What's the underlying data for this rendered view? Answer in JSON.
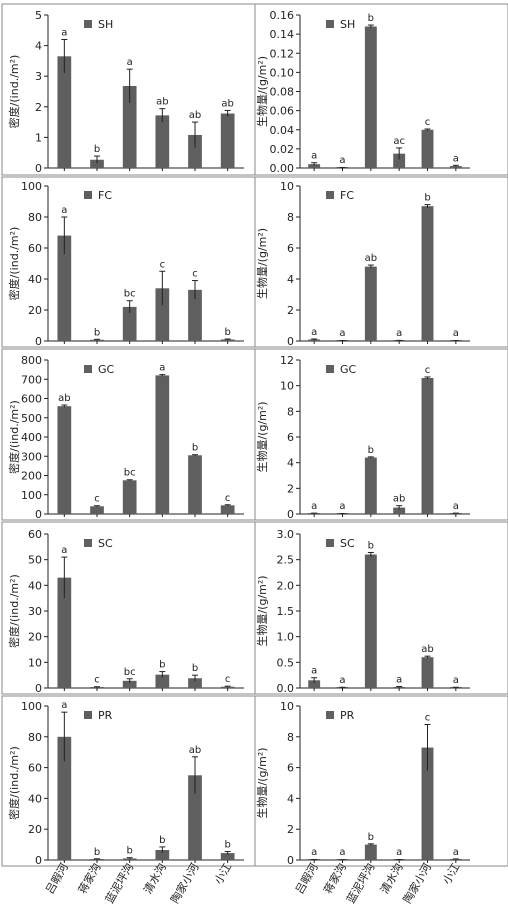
{
  "categories": [
    "吕暇河",
    "蒋家沟",
    "蓝泥坪沟",
    "清水沟",
    "陶家小河",
    "小江"
  ],
  "chart_data": [
    {
      "type": "bar",
      "legend": "SH",
      "ylabel": "密度/(ind./m²)",
      "ylim": [
        0,
        5
      ],
      "ticks": [
        0,
        1,
        2,
        3,
        4,
        5
      ],
      "values": [
        3.65,
        0.27,
        2.68,
        1.72,
        1.08,
        1.78
      ],
      "errors": [
        0.55,
        0.12,
        0.55,
        0.22,
        0.42,
        0.1
      ],
      "labels": [
        "a",
        "b",
        "a",
        "ab",
        "ab",
        "ab"
      ]
    },
    {
      "type": "bar",
      "legend": "SH",
      "ylabel": "生物量/(g/m²)",
      "ylim": [
        0,
        0.16
      ],
      "ticks": [
        0,
        0.02,
        0.04,
        0.06,
        0.08,
        0.1,
        0.12,
        0.14,
        0.16
      ],
      "tick_decimals": 2,
      "values": [
        0.004,
        0.0003,
        0.148,
        0.015,
        0.04,
        0.002
      ],
      "errors": [
        0.0015,
        0.0001,
        0.0015,
        0.006,
        0.0008,
        0.0008
      ],
      "labels": [
        "a",
        "a",
        "b",
        "ac",
        "c",
        "a"
      ]
    },
    {
      "type": "bar",
      "legend": "FC",
      "ylabel": "密度/(ind./m²)",
      "ylim": [
        0,
        100
      ],
      "ticks": [
        0,
        20,
        40,
        60,
        80,
        100
      ],
      "values": [
        68,
        0.8,
        22,
        34,
        33,
        1
      ],
      "errors": [
        12,
        0.3,
        4,
        11,
        6,
        0.3
      ],
      "labels": [
        "a",
        "b",
        "bc",
        "c",
        "c",
        "b"
      ]
    },
    {
      "type": "bar",
      "legend": "FC",
      "ylabel": "生物量/(g/m²)",
      "ylim": [
        0,
        10
      ],
      "ticks": [
        0,
        2,
        4,
        6,
        8,
        10
      ],
      "values": [
        0.1,
        0.01,
        4.8,
        0.03,
        8.7,
        0.01
      ],
      "errors": [
        0.03,
        0.01,
        0.1,
        0.01,
        0.1,
        0.01
      ],
      "labels": [
        "a",
        "a",
        "ab",
        "a",
        "b",
        "a"
      ]
    },
    {
      "type": "bar",
      "legend": "GC",
      "ylabel": "密度/(ind./m²)",
      "ylim": [
        0,
        800
      ],
      "ticks": [
        0,
        100,
        200,
        300,
        400,
        500,
        600,
        700,
        800
      ],
      "values": [
        560,
        40,
        175,
        720,
        305,
        45
      ],
      "errors": [
        6,
        3,
        3,
        4,
        3,
        3
      ],
      "labels": [
        "ab",
        "c",
        "bc",
        "a",
        "b",
        "c"
      ]
    },
    {
      "type": "bar",
      "legend": "GC",
      "ylabel": "生物量/(g/m²)",
      "ylim": [
        0,
        12
      ],
      "ticks": [
        0,
        2,
        4,
        6,
        8,
        10,
        12
      ],
      "values": [
        0.05,
        0.02,
        4.4,
        0.5,
        10.6,
        0.05
      ],
      "errors": [
        0.02,
        0.01,
        0.05,
        0.15,
        0.08,
        0.02
      ],
      "labels": [
        "a",
        "a",
        "b",
        "ab",
        "c",
        "a"
      ]
    },
    {
      "type": "bar",
      "legend": "SC",
      "ylabel": "密度/(ind./m²)",
      "ylim": [
        0,
        60
      ],
      "ticks": [
        0,
        10,
        20,
        30,
        40,
        50,
        60
      ],
      "values": [
        43,
        0.3,
        2.8,
        5.2,
        3.8,
        0.5
      ],
      "errors": [
        8,
        0.2,
        0.8,
        1.2,
        1.2,
        0.2
      ],
      "labels": [
        "a",
        "c",
        "bc",
        "b",
        "b",
        "c"
      ]
    },
    {
      "type": "bar",
      "legend": "SC",
      "ylabel": "生物量/(g/m²)",
      "ylim": [
        0,
        3.0
      ],
      "ticks": [
        0,
        0.5,
        1.0,
        1.5,
        2.0,
        2.5,
        3.0
      ],
      "tick_decimals": 1,
      "values": [
        0.15,
        0.01,
        2.6,
        0.02,
        0.6,
        0.01
      ],
      "errors": [
        0.05,
        0.005,
        0.04,
        0.01,
        0.02,
        0.005
      ],
      "labels": [
        "a",
        "a",
        "b",
        "a",
        "ab",
        "a"
      ]
    },
    {
      "type": "bar",
      "legend": "PR",
      "ylabel": "密度/(ind./m²)",
      "ylim": [
        0,
        100
      ],
      "ticks": [
        0,
        20,
        40,
        60,
        80,
        100
      ],
      "values": [
        80,
        0.5,
        1,
        6.5,
        55,
        4.5
      ],
      "errors": [
        16,
        0.3,
        0.5,
        2,
        12,
        1
      ],
      "labels": [
        "a",
        "b",
        "b",
        "b",
        "ab",
        "b"
      ]
    },
    {
      "type": "bar",
      "legend": "PR",
      "ylabel": "生物量/(g/m²)",
      "ylim": [
        0,
        10
      ],
      "ticks": [
        0,
        2,
        4,
        6,
        8,
        10
      ],
      "values": [
        0.02,
        0.01,
        1.0,
        0.02,
        7.3,
        0.05
      ],
      "errors": [
        0.01,
        0.005,
        0.05,
        0.01,
        1.5,
        0.02
      ],
      "labels": [
        "a",
        "a",
        "b",
        "a",
        "c",
        "a"
      ]
    }
  ]
}
